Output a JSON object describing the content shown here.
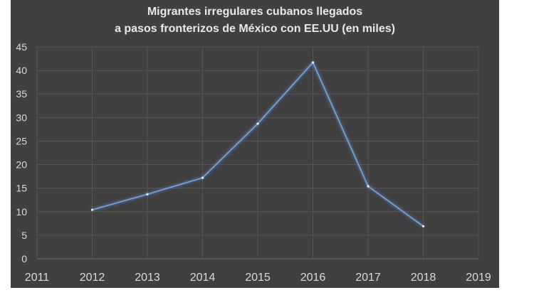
{
  "chart_data": {
    "type": "line",
    "title_lines": [
      "Migrantes irregulares cubanos llegados",
      "a pasos fronterizos de México con EE.UU (en miles)"
    ],
    "xlabel": "",
    "ylabel": "",
    "x_ticks": [
      "2011",
      "2012",
      "2013",
      "2014",
      "2015",
      "2016",
      "2017",
      "2018",
      "2019"
    ],
    "y_ticks": [
      "0",
      "5",
      "10",
      "15",
      "20",
      "25",
      "30",
      "35",
      "40",
      "45"
    ],
    "xlim": [
      2011,
      2019
    ],
    "ylim": [
      0,
      45
    ],
    "grid": true,
    "series": [
      {
        "name": "Migrantes",
        "color": "#6fa8e6",
        "x": [
          2012,
          2013,
          2014,
          2015,
          2016,
          2017,
          2018
        ],
        "values": [
          10.4,
          13.7,
          17.2,
          28.7,
          41.7,
          15.4,
          6.9
        ]
      }
    ]
  }
}
